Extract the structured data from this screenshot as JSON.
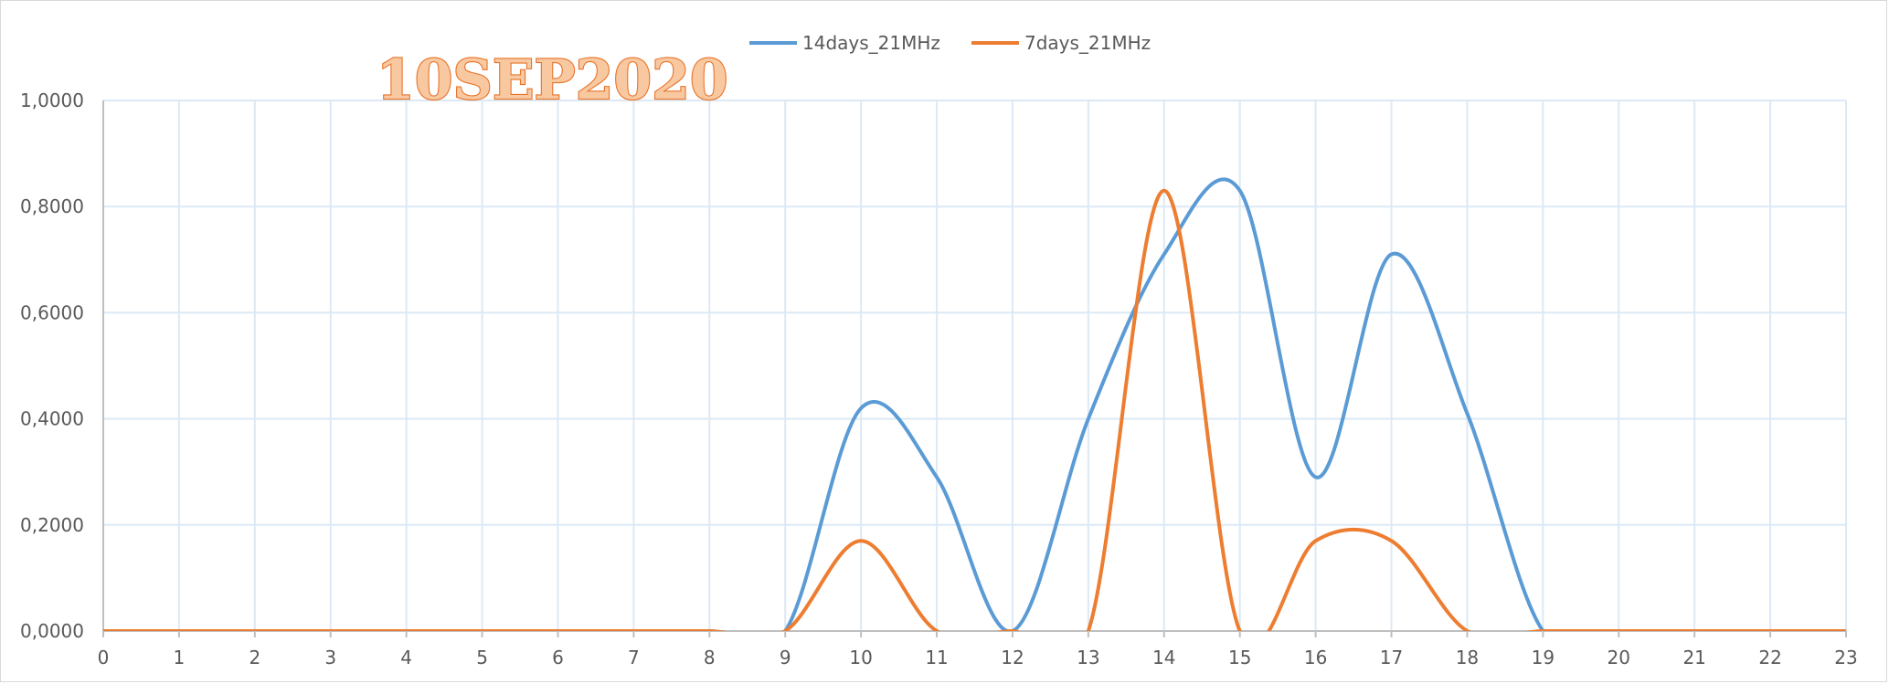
{
  "chart_data": {
    "type": "line",
    "smooth": true,
    "annotation": "10SEP2020",
    "x": [
      0,
      1,
      2,
      3,
      4,
      5,
      6,
      7,
      8,
      9,
      10,
      11,
      12,
      13,
      14,
      15,
      16,
      17,
      18,
      19,
      20,
      21,
      22,
      23
    ],
    "xlim": [
      0,
      23
    ],
    "ylim": [
      0,
      1.0
    ],
    "y_ticks": [
      "0,0000",
      "0,2000",
      "0,4000",
      "0,6000",
      "0,8000",
      "1,0000"
    ],
    "x_ticks": [
      "0",
      "1",
      "2",
      "3",
      "4",
      "5",
      "6",
      "7",
      "8",
      "9",
      "10",
      "11",
      "12",
      "13",
      "14",
      "15",
      "16",
      "17",
      "18",
      "19",
      "20",
      "21",
      "22",
      "23"
    ],
    "grid": true,
    "legend_position": "top",
    "series": [
      {
        "name": "14days_21MHz",
        "color": "#5b9bd5",
        "values": [
          0,
          0,
          0,
          0,
          0,
          0,
          0,
          0,
          0,
          0,
          0.42,
          0.29,
          0,
          0.4,
          0.71,
          0.83,
          0.29,
          0.71,
          0.41,
          0,
          0,
          0,
          0,
          0
        ]
      },
      {
        "name": "7days_21MHz",
        "color": "#ed7d31",
        "values": [
          0,
          0,
          0,
          0,
          0,
          0,
          0,
          0,
          0,
          0,
          0.17,
          0,
          0,
          0,
          0.83,
          0,
          0.17,
          0.17,
          0,
          0,
          0,
          0,
          0,
          0
        ]
      }
    ]
  }
}
